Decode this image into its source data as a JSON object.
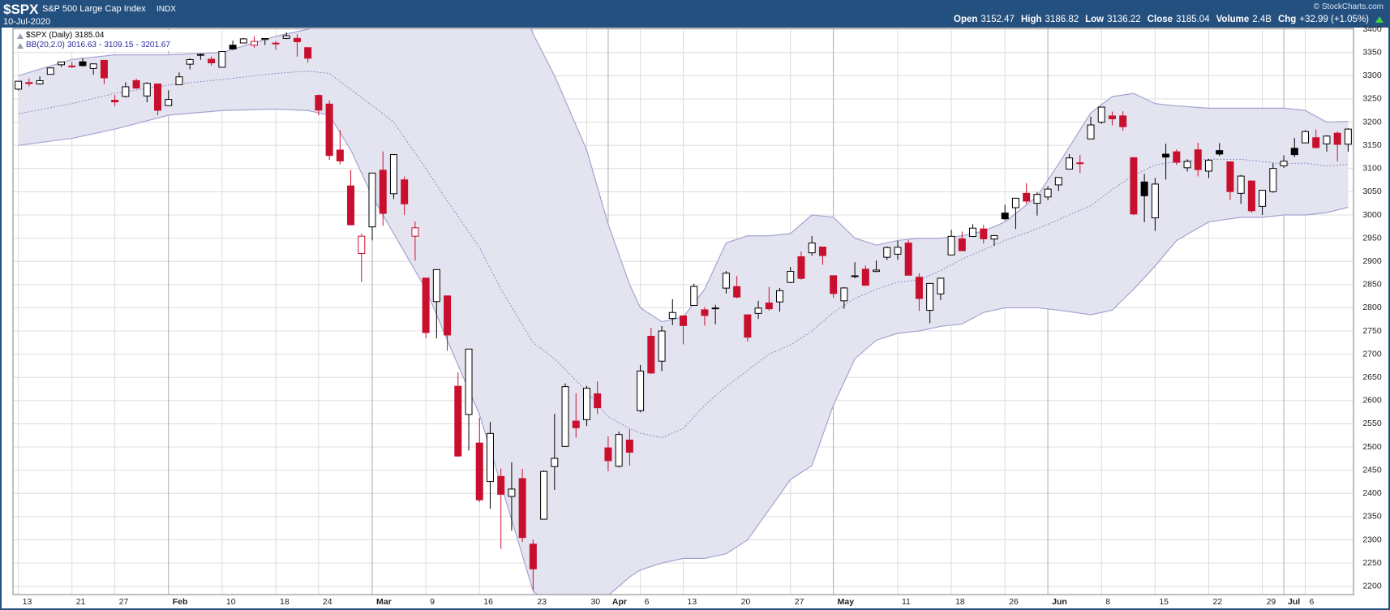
{
  "header": {
    "symbol": "$SPX",
    "name": "S&P 500 Large Cap Index",
    "exchange": "INDX",
    "date": "10-Jul-2020",
    "copyright": "© StockCharts.com",
    "quote": {
      "open_label": "Open",
      "high_label": "High",
      "low_label": "Low",
      "close_label": "Close",
      "volume_label": "Volume",
      "volume": "2.4B",
      "change_label": "Chg",
      "change": "+32.99 (+1.05%)"
    }
  },
  "chart_data": {
    "type": "candlestick",
    "name": "$SPX (Daily)",
    "x": [
      "2020-01-13",
      "2020-01-14",
      "2020-01-15",
      "2020-01-16",
      "2020-01-17",
      "2020-01-21",
      "2020-01-22",
      "2020-01-23",
      "2020-01-24",
      "2020-01-27",
      "2020-01-28",
      "2020-01-29",
      "2020-01-30",
      "2020-01-31",
      "2020-02-03",
      "2020-02-04",
      "2020-02-05",
      "2020-02-06",
      "2020-02-07",
      "2020-02-10",
      "2020-02-11",
      "2020-02-12",
      "2020-02-13",
      "2020-02-14",
      "2020-02-18",
      "2020-02-19",
      "2020-02-20",
      "2020-02-21",
      "2020-02-24",
      "2020-02-25",
      "2020-02-26",
      "2020-02-27",
      "2020-02-28",
      "2020-03-02",
      "2020-03-03",
      "2020-03-04",
      "2020-03-05",
      "2020-03-06",
      "2020-03-09",
      "2020-03-10",
      "2020-03-11",
      "2020-03-12",
      "2020-03-13",
      "2020-03-16",
      "2020-03-17",
      "2020-03-18",
      "2020-03-19",
      "2020-03-20",
      "2020-03-23",
      "2020-03-24",
      "2020-03-25",
      "2020-03-26",
      "2020-03-27",
      "2020-03-30",
      "2020-03-31",
      "2020-04-01",
      "2020-04-02",
      "2020-04-03",
      "2020-04-06",
      "2020-04-07",
      "2020-04-08",
      "2020-04-09",
      "2020-04-13",
      "2020-04-14",
      "2020-04-15",
      "2020-04-16",
      "2020-04-17",
      "2020-04-20",
      "2020-04-21",
      "2020-04-22",
      "2020-04-23",
      "2020-04-24",
      "2020-04-27",
      "2020-04-28",
      "2020-04-29",
      "2020-04-30",
      "2020-05-01",
      "2020-05-04",
      "2020-05-05",
      "2020-05-06",
      "2020-05-07",
      "2020-05-08",
      "2020-05-11",
      "2020-05-12",
      "2020-05-13",
      "2020-05-14",
      "2020-05-15",
      "2020-05-18",
      "2020-05-19",
      "2020-05-20",
      "2020-05-21",
      "2020-05-22",
      "2020-05-26",
      "2020-05-27",
      "2020-05-28",
      "2020-05-29",
      "2020-06-01",
      "2020-06-02",
      "2020-06-03",
      "2020-06-04",
      "2020-06-05",
      "2020-06-08",
      "2020-06-09",
      "2020-06-10",
      "2020-06-11",
      "2020-06-12",
      "2020-06-15",
      "2020-06-16",
      "2020-06-17",
      "2020-06-18",
      "2020-06-19",
      "2020-06-22",
      "2020-06-23",
      "2020-06-24",
      "2020-06-25",
      "2020-06-26",
      "2020-06-29",
      "2020-06-30",
      "2020-07-01",
      "2020-07-02",
      "2020-07-06",
      "2020-07-07",
      "2020-07-08",
      "2020-07-09",
      "2020-07-10"
    ],
    "open": [
      3271.13,
      3285.35,
      3282.27,
      3302.97,
      3323.66,
      3321.03,
      3330.02,
      3315.77,
      3333.1,
      3247.16,
      3255.35,
      3289.46,
      3256.45,
      3282.33,
      3235.66,
      3280.61,
      3324.91,
      3344.92,
      3335.54,
      3318.28,
      3365.87,
      3370.5,
      3365.9,
      3378.08,
      3369.04,
      3380.39,
      3380.45,
      3360.5,
      3257.61,
      3238.94,
      3139.9,
      3062.54,
      2916.9,
      2974.28,
      3096.46,
      3045.75,
      3075.7,
      2954.2,
      2863.89,
      2813.48,
      2825.6,
      2630.86,
      2569.99,
      2508.59,
      2425.66,
      2436.5,
      2393.48,
      2431.94,
      2290.71,
      2344.44,
      2457.77,
      2501.29,
      2555.87,
      2558.98,
      2614.69,
      2498.08,
      2458.54,
      2514.92,
      2578.28,
      2738.65,
      2685.0,
      2776.99,
      2782.46,
      2805.1,
      2795.64,
      2799.34,
      2842.43,
      2845.62,
      2784.81,
      2787.89,
      2810.42,
      2812.64,
      2854.65,
      2909.96,
      2918.46,
      2930.91,
      2869.09,
      2815.01,
      2868.88,
      2883.14,
      2878.26,
      2908.83,
      2915.46,
      2939.5,
      2865.86,
      2794.54,
      2829.95,
      2913.86,
      2948.59,
      2953.63,
      2969.95,
      2948.05,
      3004.08,
      3015.65,
      3046.61,
      3025.17,
      3038.78,
      3064.78,
      3098.9,
      3111.56,
      3163.84,
      3199.92,
      3213.32,
      3213.42,
      3123.53,
      3071.04,
      2993.76,
      3131.0,
      3136.13,
      3101.64,
      3140.29,
      3094.42,
      3138.7,
      3114.4,
      3046.6,
      3073.2,
      3018.59,
      3050.2,
      3105.92,
      3143.64,
      3155.29,
      3166.44,
      3153.07,
      3176.17,
      3152.47
    ],
    "high": [
      3288.13,
      3294.25,
      3298.66,
      3317.11,
      3329.88,
      3329.79,
      3337.77,
      3326.88,
      3333.18,
      3258.85,
      3285.78,
      3293.47,
      3285.91,
      3282.33,
      3268.44,
      3306.92,
      3337.58,
      3347.96,
      3341.42,
      3352.26,
      3375.63,
      3381.47,
      3385.09,
      3380.69,
      3375.01,
      3393.52,
      3389.15,
      3360.76,
      3259.81,
      3246.99,
      3182.51,
      3097.07,
      2959.72,
      3090.96,
      3136.72,
      3130.97,
      3083.04,
      2985.93,
      2863.89,
      2882.59,
      2825.6,
      2660.95,
      2711.33,
      2562.98,
      2553.93,
      2453.57,
      2466.97,
      2453.01,
      2300.73,
      2449.71,
      2571.42,
      2637.01,
      2615.91,
      2631.8,
      2641.39,
      2522.75,
      2533.22,
      2538.18,
      2676.85,
      2756.89,
      2760.75,
      2818.57,
      2782.46,
      2851.85,
      2801.88,
      2806.51,
      2879.22,
      2868.98,
      2785.54,
      2815.1,
      2844.9,
      2842.71,
      2887.72,
      2921.15,
      2954.86,
      2930.91,
      2869.09,
      2844.24,
      2898.23,
      2891.11,
      2901.92,
      2932.16,
      2944.25,
      2945.82,
      2874.14,
      2852.8,
      2865.01,
      2968.09,
      2964.21,
      2980.29,
      2978.5,
      2956.76,
      3021.72,
      3036.25,
      3068.67,
      3049.17,
      3062.18,
      3081.07,
      3130.94,
      3128.91,
      3211.72,
      3233.13,
      3222.71,
      3223.27,
      3123.53,
      3088.42,
      3079.76,
      3153.45,
      3141.16,
      3120.0,
      3155.53,
      3120.92,
      3154.9,
      3115.01,
      3086.25,
      3073.73,
      3053.89,
      3111.51,
      3128.44,
      3165.81,
      3182.59,
      3184.15,
      3171.8,
      3179.78,
      3186.82
    ],
    "low": [
      3268.43,
      3277.19,
      3280.69,
      3302.82,
      3318.86,
      3316.61,
      3320.04,
      3301.87,
      3281.53,
      3234.5,
      3253.22,
      3271.89,
      3242.8,
      3214.68,
      3235.66,
      3280.61,
      3313.75,
      3334.39,
      3322.12,
      3317.77,
      3355.61,
      3369.72,
      3360.52,
      3366.15,
      3355.61,
      3378.83,
      3341.02,
      3328.45,
      3214.65,
      3118.77,
      3108.99,
      2977.39,
      2855.84,
      2945.19,
      2976.63,
      3034.38,
      2999.83,
      2901.54,
      2734.43,
      2734.0,
      2707.22,
      2478.86,
      2492.37,
      2380.94,
      2367.04,
      2280.52,
      2319.78,
      2295.56,
      2191.86,
      2344.44,
      2407.53,
      2500.72,
      2520.02,
      2545.28,
      2571.15,
      2447.49,
      2455.79,
      2459.96,
      2574.57,
      2657.67,
      2663.3,
      2762.36,
      2721.17,
      2805.1,
      2761.54,
      2764.32,
      2830.88,
      2820.43,
      2727.1,
      2775.95,
      2794.26,
      2791.76,
      2852.89,
      2860.71,
      2912.16,
      2892.47,
      2821.61,
      2797.85,
      2863.55,
      2847.65,
      2876.48,
      2902.88,
      2903.44,
      2869.59,
      2793.15,
      2766.64,
      2816.78,
      2913.86,
      2922.35,
      2953.63,
      2938.57,
      2933.59,
      2988.17,
      2969.75,
      3023.4,
      2998.61,
      3031.54,
      3051.64,
      3098.9,
      3090.41,
      3163.84,
      3196.0,
      3193.11,
      3181.49,
      2999.49,
      2984.47,
      2965.66,
      3076.06,
      3108.03,
      3093.51,
      3083.11,
      3079.39,
      3127.12,
      3032.13,
      3024.01,
      3004.63,
      2999.74,
      3047.83,
      3101.17,
      3124.52,
      3155.29,
      3142.93,
      3136.53,
      3115.7,
      3136.22
    ],
    "close": [
      3288.13,
      3283.15,
      3289.29,
      3316.81,
      3329.62,
      3320.79,
      3321.75,
      3325.54,
      3295.47,
      3243.63,
      3276.24,
      3273.4,
      3283.66,
      3225.52,
      3248.92,
      3297.59,
      3334.69,
      3345.78,
      3327.71,
      3352.09,
      3357.75,
      3379.45,
      3373.94,
      3380.16,
      3370.29,
      3386.15,
      3373.23,
      3337.75,
      3225.89,
      3128.21,
      3116.39,
      2978.76,
      2954.22,
      3090.23,
      3003.37,
      3130.12,
      3023.94,
      2972.37,
      2746.56,
      2882.23,
      2741.38,
      2480.64,
      2711.02,
      2386.13,
      2529.19,
      2398.1,
      2409.39,
      2304.92,
      2237.4,
      2447.33,
      2475.56,
      2630.07,
      2541.47,
      2626.65,
      2584.59,
      2470.5,
      2526.9,
      2488.65,
      2663.68,
      2659.41,
      2749.98,
      2789.82,
      2761.63,
      2846.06,
      2783.36,
      2799.55,
      2874.56,
      2823.16,
      2736.56,
      2799.31,
      2797.8,
      2836.74,
      2878.48,
      2863.39,
      2939.51,
      2912.43,
      2830.71,
      2842.74,
      2868.44,
      2848.42,
      2881.19,
      2929.8,
      2930.32,
      2870.12,
      2820.0,
      2852.5,
      2863.7,
      2953.91,
      2922.94,
      2971.61,
      2948.51,
      2955.45,
      2991.77,
      3036.13,
      3029.73,
      3044.31,
      3055.73,
      3080.82,
      3122.87,
      3112.35,
      3193.93,
      3232.39,
      3207.18,
      3190.14,
      3002.1,
      3041.31,
      3066.59,
      3124.74,
      3113.49,
      3115.34,
      3097.74,
      3117.86,
      3131.29,
      3050.33,
      3083.76,
      3009.05,
      3053.24,
      3100.29,
      3115.86,
      3130.01,
      3179.72,
      3145.32,
      3169.94,
      3152.05,
      3185.04
    ],
    "colors": {
      "rising": "#000000",
      "falling": "#c8102e",
      "band_fill": "#e4e4f0",
      "band_line": "#a3a3d2",
      "band_middle": "#8c8cc8"
    },
    "bands": {
      "name": "BB(20,2.0)",
      "separator": "-",
      "x": [
        "2020-01-13",
        "2020-01-21",
        "2020-01-27",
        "2020-02-03",
        "2020-02-10",
        "2020-02-18",
        "2020-02-21",
        "2020-02-25",
        "2020-02-27",
        "2020-03-02",
        "2020-03-04",
        "2020-03-09",
        "2020-03-11",
        "2020-03-16",
        "2020-03-18",
        "2020-03-23",
        "2020-03-25",
        "2020-03-30",
        "2020-04-01",
        "2020-04-03",
        "2020-04-06",
        "2020-04-08",
        "2020-04-13",
        "2020-04-15",
        "2020-04-17",
        "2020-04-21",
        "2020-04-23",
        "2020-04-27",
        "2020-04-29",
        "2020-05-01",
        "2020-05-05",
        "2020-05-07",
        "2020-05-11",
        "2020-05-13",
        "2020-05-15",
        "2020-05-19",
        "2020-05-21",
        "2020-05-26",
        "2020-05-29",
        "2020-06-02",
        "2020-06-05",
        "2020-06-09",
        "2020-06-11",
        "2020-06-15",
        "2020-06-17",
        "2020-06-22",
        "2020-06-25",
        "2020-06-29",
        "2020-07-01",
        "2020-07-06",
        "2020-07-08",
        "2020-07-10"
      ],
      "upper": [
        3300,
        3335,
        3345,
        3345,
        3350,
        3385,
        3400,
        3420,
        3460,
        3510,
        3530,
        3560,
        3580,
        3600,
        3560,
        3390,
        3300,
        3140,
        2980,
        2850,
        2800,
        2770,
        2780,
        2840,
        2940,
        2955,
        2955,
        2960,
        3000,
        2995,
        2950,
        2935,
        2945,
        2950,
        2950,
        2955,
        2965,
        2985,
        3040,
        3110,
        3220,
        3255,
        3262,
        3240,
        3235,
        3230,
        3230,
        3230,
        3230,
        3225,
        3200,
        3201.67
      ],
      "middle": [
        3218,
        3240,
        3262,
        3280,
        3292,
        3305,
        3310,
        3305,
        3270,
        3236,
        3200,
        3100,
        3030,
        2930,
        2840,
        2725,
        2690,
        2620,
        2565,
        2540,
        2530,
        2520,
        2540,
        2590,
        2630,
        2665,
        2700,
        2720,
        2750,
        2790,
        2820,
        2840,
        2855,
        2860,
        2880,
        2905,
        2925,
        2945,
        2970,
        2990,
        3020,
        3055,
        3085,
        3108,
        3115,
        3120,
        3120,
        3115,
        3110,
        3112,
        3105,
        3109.15
      ],
      "lower": [
        3150,
        3165,
        3185,
        3215,
        3225,
        3228,
        3225,
        3215,
        3140,
        3040,
        2960,
        2840,
        2730,
        2570,
        2420,
        2190,
        2150,
        2130,
        2180,
        2220,
        2235,
        2250,
        2260,
        2260,
        2270,
        2300,
        2365,
        2430,
        2460,
        2590,
        2690,
        2730,
        2745,
        2750,
        2760,
        2765,
        2790,
        2800,
        2800,
        2795,
        2785,
        2795,
        2840,
        2890,
        2945,
        2985,
        2995,
        2995,
        3000,
        3000,
        3005,
        3016.63
      ]
    },
    "ylim": [
      2182,
      3402
    ],
    "yticks": [
      2200,
      2250,
      2300,
      2350,
      2400,
      2450,
      2500,
      2550,
      2600,
      2650,
      2700,
      2750,
      2800,
      2850,
      2900,
      2950,
      3000,
      3050,
      3100,
      3150,
      3200,
      3250,
      3300,
      3350,
      3400
    ],
    "xticks": [
      {
        "value": "2020-01-13",
        "label": "13"
      },
      {
        "value": "2020-01-21",
        "label": "21"
      },
      {
        "value": "2020-01-27",
        "label": "27"
      },
      {
        "value": "2020-02-03",
        "label": "Feb"
      },
      {
        "value": "2020-02-10",
        "label": "10"
      },
      {
        "value": "2020-02-18",
        "label": "18"
      },
      {
        "value": "2020-02-24",
        "label": "24"
      },
      {
        "value": "2020-03-02",
        "label": "Mar"
      },
      {
        "value": "2020-03-09",
        "label": "9"
      },
      {
        "value": "2020-03-16",
        "label": "16"
      },
      {
        "value": "2020-03-23",
        "label": "23"
      },
      {
        "value": "2020-03-30",
        "label": "30"
      },
      {
        "value": "2020-04-01",
        "label": "Apr"
      },
      {
        "value": "2020-04-06",
        "label": "6"
      },
      {
        "value": "2020-04-13",
        "label": "13"
      },
      {
        "value": "2020-04-20",
        "label": "20"
      },
      {
        "value": "2020-04-27",
        "label": "27"
      },
      {
        "value": "2020-05-01",
        "label": "May"
      },
      {
        "value": "2020-05-11",
        "label": "11"
      },
      {
        "value": "2020-05-18",
        "label": "18"
      },
      {
        "value": "2020-05-26",
        "label": "26"
      },
      {
        "value": "2020-06-01",
        "label": "Jun"
      },
      {
        "value": "2020-06-08",
        "label": "8"
      },
      {
        "value": "2020-06-15",
        "label": "15"
      },
      {
        "value": "2020-06-22",
        "label": "22"
      },
      {
        "value": "2020-06-29",
        "label": "29"
      },
      {
        "value": "2020-07-01",
        "label": "Jul"
      },
      {
        "value": "2020-07-06",
        "label": "6"
      }
    ],
    "grid": true
  }
}
